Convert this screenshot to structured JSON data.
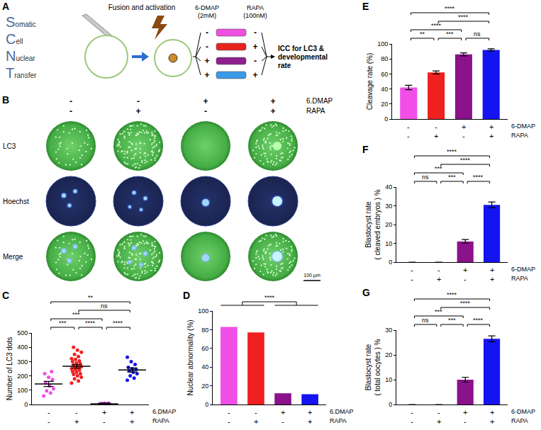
{
  "panels": {
    "A": {
      "label": "A",
      "scnt": [
        {
          "initial": "S",
          "rest": "omatic"
        },
        {
          "initial": "C",
          "rest": "ell"
        },
        {
          "initial": "N",
          "rest": "uclear"
        },
        {
          "initial": "T",
          "rest": "ransfer"
        }
      ],
      "step": "Fusion and activation",
      "treatments": [
        "6-DMAP (2mM)",
        "RAPA (100nM)"
      ],
      "groups": [
        {
          "signs": [
            "-",
            "-"
          ],
          "color": "#f050e0"
        },
        {
          "signs": [
            "-",
            "+"
          ],
          "color": "#e8231e"
        },
        {
          "signs": [
            "+",
            "-"
          ],
          "color": "#8e1f8e"
        },
        {
          "signs": [
            "+",
            "+"
          ],
          "color": "#3a9ae8"
        }
      ],
      "outcome": "ICC for LC3 & developmental rate"
    },
    "B": {
      "label": "B",
      "factors": [
        {
          "name": "6.DMAP",
          "signs": [
            "-",
            "-",
            "+",
            "+"
          ]
        },
        {
          "name": "RAPA",
          "signs": [
            "-",
            "+",
            "-",
            "+"
          ]
        }
      ],
      "rows": [
        "LC3",
        "Hoechst",
        "Merge"
      ],
      "scale_bar": "100 µm"
    }
  },
  "chart_data": [
    {
      "panel": "C",
      "type": "scatter",
      "y_label": "Number of LC3 dots",
      "ylim": [
        0,
        500
      ],
      "yticks": [
        0,
        100,
        200,
        300,
        400,
        500
      ],
      "grid": false,
      "tick_labels": "y",
      "factors": [
        {
          "name": "6.DMAP",
          "signs": [
            "-",
            "-",
            "+",
            "+"
          ]
        },
        {
          "name": "RAPA",
          "signs": [
            "-",
            "+",
            "-",
            "+"
          ]
        }
      ],
      "series": [
        {
          "color": "#f04ee6",
          "values": [
            60,
            80,
            95,
            110,
            130,
            150,
            175,
            190,
            215,
            230
          ]
        },
        {
          "color": "#f02020",
          "values": [
            150,
            165,
            180,
            190,
            200,
            210,
            215,
            225,
            230,
            240,
            245,
            250,
            255,
            260,
            265,
            270,
            275,
            285,
            290,
            300,
            305,
            315,
            320,
            335,
            350,
            365,
            380,
            400
          ]
        },
        {
          "color": "#8b128b",
          "values": [
            2,
            3,
            4,
            5,
            5,
            6,
            7,
            8
          ]
        },
        {
          "color": "#1414f0",
          "values": [
            170,
            185,
            200,
            215,
            225,
            235,
            245,
            250,
            260,
            280,
            300,
            330
          ]
        }
      ],
      "means": [
        143.5,
        266.8,
        5,
        241.3
      ],
      "errors": [
        18,
        13,
        1,
        14
      ],
      "significance": [
        {
          "from": 0,
          "to": 1,
          "label": "***"
        },
        {
          "from": 1,
          "to": 2,
          "label": "****"
        },
        {
          "from": 2,
          "to": 3,
          "label": "****"
        },
        {
          "from": 0,
          "to": 2,
          "label": "***"
        },
        {
          "from": 1,
          "to": 3,
          "label": "ns"
        },
        {
          "from": 0,
          "to": 3,
          "label": "**"
        }
      ]
    },
    {
      "panel": "D",
      "type": "bar",
      "y_label": "Nuclear abnormality (%)",
      "ylim": [
        0,
        100
      ],
      "yticks": [
        0,
        20,
        40,
        60,
        80,
        100
      ],
      "grid": false,
      "tick_labels": "y",
      "factors": [
        {
          "name": "6.DMAP",
          "signs": [
            "-",
            "-",
            "+",
            "+"
          ]
        },
        {
          "name": "RAPA",
          "signs": [
            "-",
            "+",
            "-",
            "+"
          ]
        }
      ],
      "values": [
        83,
        77,
        12,
        11
      ],
      "colors": [
        "#f04ee6",
        "#f02020",
        "#8b128b",
        "#1414f0"
      ],
      "significance": [
        {
          "from": [
            0,
            1
          ],
          "to": [
            2,
            3
          ],
          "label": "****"
        }
      ]
    },
    {
      "panel": "E",
      "type": "bar",
      "y_label": "Cleavage rate (%)",
      "ylim": [
        0,
        100
      ],
      "yticks": [
        0,
        20,
        40,
        60,
        80,
        100
      ],
      "grid": false,
      "tick_labels": "y",
      "factors": [
        {
          "name": "6-DMAP",
          "signs": [
            "-",
            "-",
            "+",
            "+"
          ]
        },
        {
          "name": "RAPA",
          "signs": [
            "-",
            "+",
            "-",
            "+"
          ]
        }
      ],
      "values": [
        42,
        62,
        86,
        92
      ],
      "errors": [
        3,
        2,
        2,
        1.5
      ],
      "colors": [
        "#f04ee6",
        "#f02020",
        "#8b128b",
        "#1414f0"
      ],
      "significance": [
        {
          "from": 0,
          "to": 1,
          "label": "**"
        },
        {
          "from": 1,
          "to": 2,
          "label": "***"
        },
        {
          "from": 2,
          "to": 3,
          "label": "ns"
        },
        {
          "from": 0,
          "to": 2,
          "label": "****"
        },
        {
          "from": 1,
          "to": 3,
          "label": "****"
        },
        {
          "from": 0,
          "to": 3,
          "label": "****"
        }
      ]
    },
    {
      "panel": "F",
      "type": "bar",
      "y_label": "Blastocyst rate ( cleaved embryos ) %",
      "ylim": [
        0,
        40
      ],
      "yticks": [
        0,
        10,
        20,
        30,
        40
      ],
      "grid": false,
      "tick_labels": "y",
      "factors": [
        {
          "name": "6-DMAP",
          "signs": [
            "-",
            "-",
            "+",
            "+"
          ]
        },
        {
          "name": "RAPA",
          "signs": [
            "-",
            "+",
            "-",
            "+"
          ]
        }
      ],
      "values": [
        0,
        0,
        11,
        30.5
      ],
      "errors": [
        0,
        0,
        1,
        1.5
      ],
      "colors": [
        "#f04ee6",
        "#f02020",
        "#8b128b",
        "#1414f0"
      ],
      "significance": [
        {
          "from": 0,
          "to": 1,
          "label": "ns"
        },
        {
          "from": 1,
          "to": 2,
          "label": "***"
        },
        {
          "from": 2,
          "to": 3,
          "label": "****"
        },
        {
          "from": 0,
          "to": 2,
          "label": "***"
        },
        {
          "from": 1,
          "to": 3,
          "label": "****"
        },
        {
          "from": 0,
          "to": 3,
          "label": "****"
        }
      ]
    },
    {
      "panel": "G",
      "type": "bar",
      "y_label": "Blastocyst rate ( total oocytes ) %",
      "ylim": [
        0,
        30
      ],
      "yticks": [
        0,
        10,
        20,
        30
      ],
      "grid": false,
      "tick_labels": "y",
      "factors": [
        {
          "name": "6-DMAP",
          "signs": [
            "-",
            "-",
            "+",
            "+"
          ]
        },
        {
          "name": "RAPA",
          "signs": [
            "-",
            "+",
            "-",
            "+"
          ]
        }
      ],
      "values": [
        0,
        0,
        10,
        26.5
      ],
      "errors": [
        0,
        0,
        1,
        1.2
      ],
      "colors": [
        "#f04ee6",
        "#f02020",
        "#8b128b",
        "#1414f0"
      ],
      "significance": [
        {
          "from": 0,
          "to": 1,
          "label": "ns"
        },
        {
          "from": 1,
          "to": 2,
          "label": "***"
        },
        {
          "from": 2,
          "to": 3,
          "label": "****"
        },
        {
          "from": 0,
          "to": 2,
          "label": "***"
        },
        {
          "from": 1,
          "to": 3,
          "label": "****"
        },
        {
          "from": 0,
          "to": 3,
          "label": "****"
        }
      ]
    }
  ]
}
